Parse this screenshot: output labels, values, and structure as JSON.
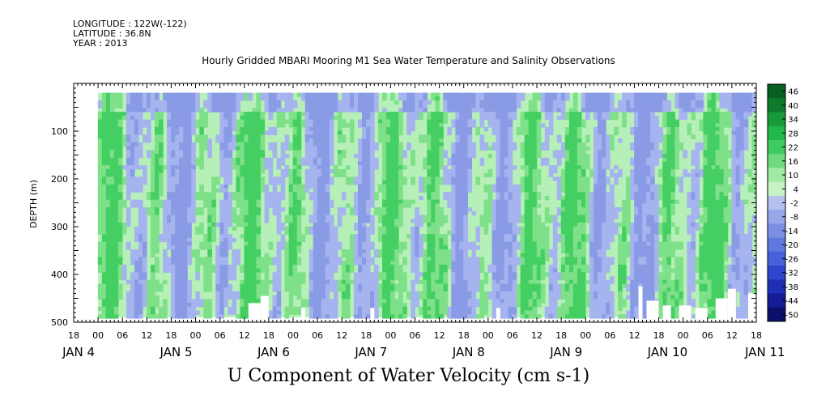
{
  "metadata": {
    "longitude": "LONGITUDE : 122W(-122)",
    "latitude": "LATITUDE : 36.8N",
    "year": "YEAR : 2013"
  },
  "title": "Hourly Gridded MBARI Mooring M1 Sea Water Temperature and Salinity Observations",
  "bottom_title": "U Component of Water Velocity (cm s-1)",
  "chart_data": {
    "type": "heatmap",
    "title": "Hourly Gridded MBARI Mooring M1 Sea Water Temperature and Salinity Observations",
    "variable": "U Component of Water Velocity (cm s-1)",
    "ylabel": "DEPTH (m)",
    "y_inverted": true,
    "ylim": [
      500,
      0
    ],
    "data_depth_range": [
      20,
      490
    ],
    "yticks": [
      100,
      200,
      300,
      400,
      500
    ],
    "x_time_range_hours": [
      -6,
      162
    ],
    "data_time_range_hours": [
      0,
      162
    ],
    "x_hour_labels": [
      "18",
      "00",
      "06",
      "12",
      "18",
      "00",
      "06",
      "12",
      "18",
      "00",
      "06",
      "12",
      "18",
      "00",
      "06",
      "12",
      "18",
      "00",
      "06",
      "12",
      "18",
      "00",
      "06",
      "12",
      "18",
      "00",
      "06",
      "12",
      "18",
      "00",
      "06",
      "12"
    ],
    "x_hour_label_positions": [
      -6,
      0,
      6,
      12,
      18,
      24,
      30,
      36,
      42,
      48,
      54,
      60,
      66,
      72,
      78,
      84,
      90,
      96,
      102,
      108,
      114,
      120,
      126,
      132,
      138,
      144,
      150,
      156,
      162,
      168,
      174,
      180
    ],
    "x_date_labels": [
      "JAN  4",
      "JAN  5",
      "JAN  6",
      "JAN  7",
      "JAN  8",
      "JAN  9",
      "JAN 10",
      "JAN 11"
    ],
    "x_date_label_positions": [
      0,
      24,
      48,
      72,
      96,
      120,
      144,
      168
    ],
    "colorbar": {
      "levels": [
        -50,
        -44,
        -38,
        -32,
        -26,
        -20,
        -14,
        -8,
        -2,
        4,
        10,
        16,
        22,
        28,
        34,
        40,
        46
      ],
      "labels": [
        "46",
        "40",
        "34",
        "28",
        "22",
        "16",
        "10",
        "4",
        "-2",
        "-8",
        "-14",
        "-20",
        "-26",
        "-32",
        "-38",
        "-44",
        "-50"
      ],
      "colors": [
        "#0b0f6b",
        "#141d94",
        "#1f2fb6",
        "#2e45cd",
        "#4560d9",
        "#5f78df",
        "#7b90e4",
        "#97a8ea",
        "#b5c2ef",
        "#c6f2c6",
        "#9fe9a3",
        "#6fdb80",
        "#3ccc5f",
        "#22b74a",
        "#169a3a",
        "#0d7a2c",
        "#085f21"
      ]
    },
    "palette": {
      "blue": "#a5b4ee",
      "blue_deep": "#8a9be6",
      "green_light": "#b6f0b8",
      "green": "#7ee089",
      "green_deep": "#45cf63",
      "missing": "#ffffff"
    }
  }
}
